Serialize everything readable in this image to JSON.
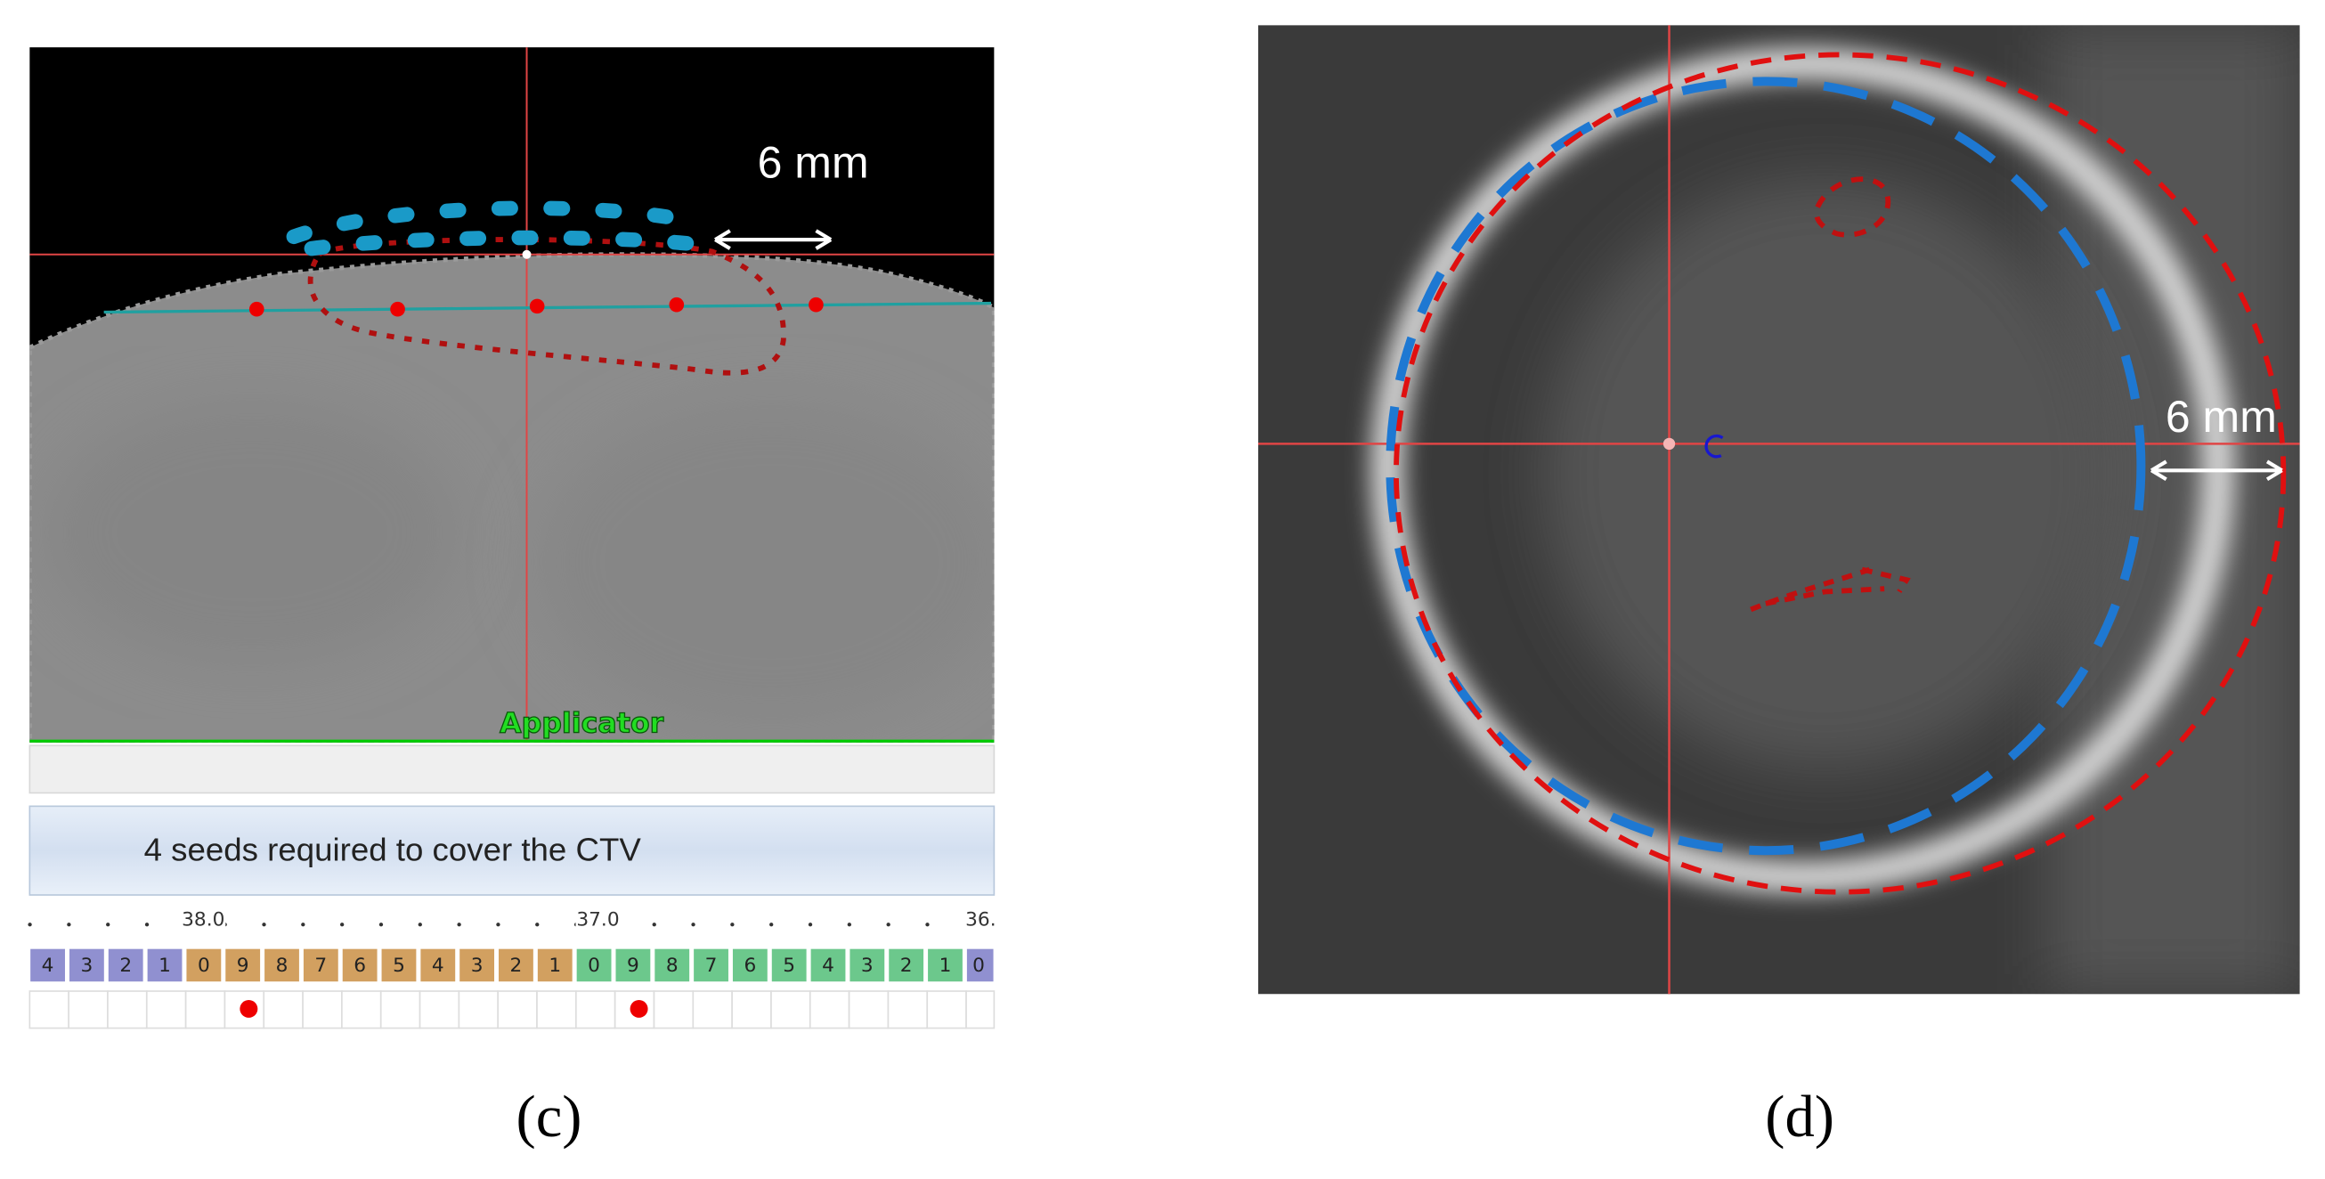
{
  "panel_c": {
    "distance_label": "6 mm",
    "applicator_label": "Applicator",
    "status": "4 seeds required to cover the CTV",
    "ruler_labels": [
      "38.0",
      "37.0",
      "36."
    ],
    "segments": [
      "4",
      "3",
      "2",
      "1",
      "0",
      "9",
      "8",
      "7",
      "6",
      "5",
      "4",
      "3",
      "2",
      "1",
      "0",
      "9",
      "8",
      "7",
      "6",
      "5",
      "4",
      "3",
      "2",
      "1",
      "0"
    ]
  },
  "panel_d": {
    "distance_label": "6 mm"
  },
  "captions": [
    "(c)",
    "(d)"
  ]
}
